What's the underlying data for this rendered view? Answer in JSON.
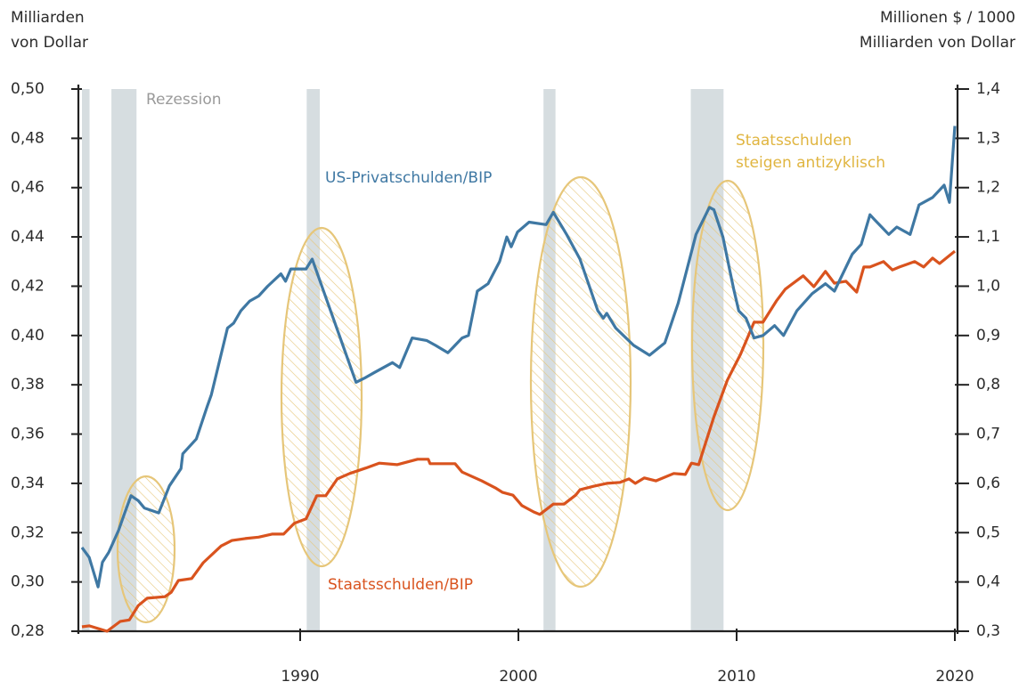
{
  "chart_data": {
    "type": "line",
    "ylabel": [
      "Milliarden",
      "von Dollar"
    ],
    "y2label": [
      "Millionen $ / 1000",
      "Milliarden von Dollar"
    ],
    "annotations": {
      "recession": "Rezession",
      "counter": [
        "Staatsschulden",
        "steigen antizyklisch"
      ]
    },
    "recession_color": "#d6dde0",
    "recessions": [
      [
        1980.0,
        1980.35
      ],
      [
        1981.35,
        1982.5
      ],
      [
        1990.3,
        1990.9
      ],
      [
        2001.15,
        2001.7
      ],
      [
        2007.9,
        2009.4
      ]
    ],
    "xlim": [
      1980,
      2020
    ],
    "xticks": [
      1990,
      2000,
      2010,
      2020
    ],
    "ylim": [
      0.28,
      0.5
    ],
    "yticks": [
      {
        "value": 0.28,
        "label": "0,28"
      },
      {
        "value": 0.3,
        "label": "0,30"
      },
      {
        "value": 0.32,
        "label": "0,32"
      },
      {
        "value": 0.34,
        "label": "0,34"
      },
      {
        "value": 0.36,
        "label": "0,36"
      },
      {
        "value": 0.38,
        "label": "0,38"
      },
      {
        "value": 0.4,
        "label": "0,40"
      },
      {
        "value": 0.42,
        "label": "0,42"
      },
      {
        "value": 0.44,
        "label": "0,44"
      },
      {
        "value": 0.46,
        "label": "0,46"
      },
      {
        "value": 0.48,
        "label": "0,48"
      },
      {
        "value": 0.5,
        "label": "0,50"
      }
    ],
    "y2lim": [
      0.3,
      1.4
    ],
    "y2ticks": [
      {
        "value": 0.3,
        "label": "0,3"
      },
      {
        "value": 0.4,
        "label": "0,4"
      },
      {
        "value": 0.5,
        "label": "0,5"
      },
      {
        "value": 0.6,
        "label": "0,6"
      },
      {
        "value": 0.7,
        "label": "0,7"
      },
      {
        "value": 0.8,
        "label": "0,8"
      },
      {
        "value": 0.9,
        "label": "0,9"
      },
      {
        "value": 1.0,
        "label": "1,0"
      },
      {
        "value": 1.1,
        "label": "1,1"
      },
      {
        "value": 1.2,
        "label": "1,2"
      },
      {
        "value": 1.3,
        "label": "1,3"
      },
      {
        "value": 1.4,
        "label": "1,4"
      }
    ],
    "series": [
      {
        "name": "US-Privatschulden/BIP",
        "color": "#3f78a3",
        "axis": "y",
        "x": [
          1980.0,
          1980.33,
          1980.74,
          1980.94,
          1981.23,
          1981.68,
          1981.96,
          1982.25,
          1982.58,
          1982.86,
          1983.52,
          1984.01,
          1984.54,
          1984.62,
          1985.24,
          1985.73,
          1985.93,
          1986.67,
          1986.95,
          1987.28,
          1987.69,
          1988.1,
          1988.51,
          1989.12,
          1989.33,
          1989.57,
          1990.27,
          1990.55,
          1992.56,
          1993.01,
          1993.41,
          1994.23,
          1994.56,
          1995.13,
          1995.79,
          1996.2,
          1996.77,
          1997.42,
          1997.71,
          1998.12,
          1998.61,
          1999.14,
          1999.47,
          1999.67,
          1999.96,
          2000.49,
          2001.27,
          2001.6,
          2002.21,
          2002.82,
          2003.64,
          2003.89,
          2004.05,
          2004.46,
          2005.28,
          2006.01,
          2006.71,
          2007.32,
          2008.14,
          2008.75,
          2008.96,
          2009.37,
          2009.65,
          2009.86,
          2010.1,
          2010.43,
          2010.8,
          2011.21,
          2011.74,
          2012.15,
          2012.76,
          2013.46,
          2014.07,
          2014.48,
          2015.3,
          2015.71,
          2016.11,
          2016.32,
          2016.97,
          2017.34,
          2017.95,
          2018.36,
          2018.98,
          2019.51,
          2019.75,
          2020.0
        ],
        "values": [
          0.314,
          0.31,
          0.298,
          0.308,
          0.312,
          0.321,
          0.328,
          0.335,
          0.333,
          0.33,
          0.328,
          0.339,
          0.346,
          0.352,
          0.358,
          0.371,
          0.376,
          0.403,
          0.405,
          0.41,
          0.414,
          0.416,
          0.42,
          0.425,
          0.422,
          0.427,
          0.427,
          0.431,
          0.381,
          0.383,
          0.385,
          0.389,
          0.387,
          0.399,
          0.398,
          0.396,
          0.393,
          0.399,
          0.4,
          0.418,
          0.421,
          0.43,
          0.44,
          0.436,
          0.442,
          0.446,
          0.445,
          0.45,
          0.441,
          0.431,
          0.41,
          0.407,
          0.409,
          0.403,
          0.396,
          0.392,
          0.397,
          0.413,
          0.441,
          0.452,
          0.451,
          0.44,
          0.428,
          0.419,
          0.41,
          0.407,
          0.399,
          0.4,
          0.404,
          0.4,
          0.41,
          0.417,
          0.421,
          0.418,
          0.433,
          0.437,
          0.449,
          0.447,
          0.441,
          0.444,
          0.441,
          0.453,
          0.456,
          0.461,
          0.454,
          0.485
        ]
      },
      {
        "name": "Staatsschulden/BIP",
        "color": "#d9531e",
        "axis": "y2",
        "x": [
          1980.0,
          1980.33,
          1981.15,
          1981.76,
          1982.17,
          1982.58,
          1982.99,
          1983.8,
          1984.09,
          1984.42,
          1985.03,
          1985.56,
          1986.38,
          1986.87,
          1987.48,
          1988.1,
          1988.71,
          1989.24,
          1989.73,
          1990.27,
          1990.76,
          1991.17,
          1991.7,
          1992.27,
          1993.01,
          1993.62,
          1994.44,
          1995.38,
          1995.87,
          1995.95,
          1997.1,
          1997.42,
          1998.32,
          1998.94,
          1999.26,
          1999.75,
          2000.16,
          2000.7,
          2000.98,
          2001.6,
          2002.09,
          2002.62,
          2002.82,
          2003.44,
          2004.05,
          2004.66,
          2005.07,
          2005.36,
          2005.77,
          2006.3,
          2007.12,
          2007.65,
          2007.93,
          2008.26,
          2008.96,
          2009.57,
          2010.18,
          2010.8,
          2011.21,
          2011.82,
          2012.23,
          2013.05,
          2013.54,
          2014.07,
          2014.48,
          2015.01,
          2015.5,
          2015.83,
          2016.11,
          2016.73,
          2017.14,
          2017.46,
          2018.16,
          2018.57,
          2018.98,
          2019.3,
          2020.0
        ],
        "values": [
          0.309,
          0.311,
          0.3,
          0.32,
          0.323,
          0.352,
          0.367,
          0.37,
          0.379,
          0.403,
          0.407,
          0.439,
          0.473,
          0.484,
          0.488,
          0.491,
          0.497,
          0.497,
          0.519,
          0.528,
          0.575,
          0.575,
          0.609,
          0.62,
          0.631,
          0.641,
          0.638,
          0.649,
          0.649,
          0.64,
          0.64,
          0.623,
          0.605,
          0.591,
          0.582,
          0.576,
          0.555,
          0.542,
          0.537,
          0.558,
          0.558,
          0.576,
          0.587,
          0.594,
          0.6,
          0.602,
          0.609,
          0.6,
          0.611,
          0.605,
          0.62,
          0.618,
          0.641,
          0.638,
          0.735,
          0.809,
          0.862,
          0.927,
          0.927,
          0.97,
          0.994,
          1.021,
          0.999,
          1.03,
          1.006,
          1.01,
          0.988,
          1.039,
          1.039,
          1.05,
          1.033,
          1.039,
          1.05,
          1.039,
          1.057,
          1.046,
          1.071
        ]
      }
    ]
  }
}
